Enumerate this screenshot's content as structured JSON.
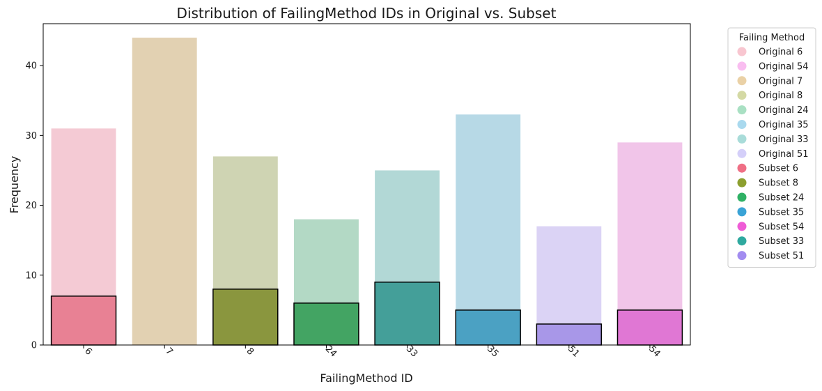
{
  "chart_data": {
    "type": "bar",
    "title": "Distribution of FailingMethod IDs in Original vs. Subset",
    "xlabel": "FailingMethod ID",
    "ylabel": "Frequency",
    "categories": [
      "6",
      "7",
      "8",
      "24",
      "33",
      "35",
      "51",
      "54"
    ],
    "ylim": [
      0,
      46
    ],
    "yticks": [
      0,
      10,
      20,
      30,
      40
    ],
    "series": [
      {
        "name": "Original",
        "values": [
          31,
          44,
          27,
          18,
          25,
          33,
          17,
          29
        ],
        "colors": [
          "#f4cad4",
          "#e2d1b2",
          "#cfd4b3",
          "#b3d9c5",
          "#b2d8d6",
          "#b7d9e6",
          "#dbd3f5",
          "#f1c5e9"
        ]
      },
      {
        "name": "Subset",
        "values": [
          7,
          null,
          8,
          6,
          9,
          5,
          3,
          5
        ],
        "colors": [
          "#e88194",
          null,
          "#8a963e",
          "#43a463",
          "#449f99",
          "#4ba1c3",
          "#a897e8",
          "#e077d4"
        ]
      }
    ],
    "legend": {
      "title": "Failing Method",
      "placement": "outside-right",
      "items": [
        {
          "label": "Original 6",
          "color": "#f8c6d0"
        },
        {
          "label": "Original 54",
          "color": "#f9bdf0"
        },
        {
          "label": "Original 7",
          "color": "#ead1a6"
        },
        {
          "label": "Original 8",
          "color": "#d4d9a4"
        },
        {
          "label": "Original 24",
          "color": "#a9e0c3"
        },
        {
          "label": "Original 35",
          "color": "#a9d9ee"
        },
        {
          "label": "Original 33",
          "color": "#a9dcd9"
        },
        {
          "label": "Original 51",
          "color": "#d4cff9"
        },
        {
          "label": "Subset 6",
          "color": "#ef6f85"
        },
        {
          "label": "Subset 8",
          "color": "#8c9f2f"
        },
        {
          "label": "Subset 24",
          "color": "#2fb165"
        },
        {
          "label": "Subset 35",
          "color": "#3aa3d6"
        },
        {
          "label": "Subset 54",
          "color": "#ef5cd6"
        },
        {
          "label": "Subset 33",
          "color": "#2fa99f"
        },
        {
          "label": "Subset 51",
          "color": "#a28cf0"
        }
      ]
    }
  }
}
